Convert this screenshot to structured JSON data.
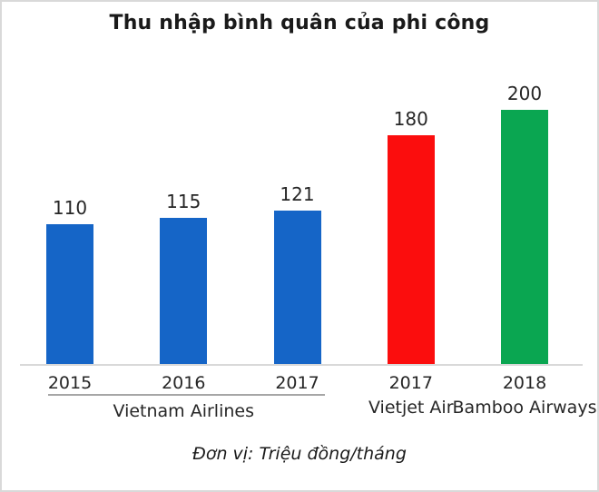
{
  "colors": {
    "blue": "#1565c7",
    "red": "#fb0d0d",
    "green": "#0aa651",
    "axis_line": "#d9d9d9",
    "group_underline": "#a6a6a6",
    "text": "#1a1a1a"
  },
  "chart_data": {
    "type": "bar",
    "title": "Thu nhập bình quân của phi công",
    "unit_label": "Đơn vị: Triệu đồng/tháng",
    "ylim": [
      0,
      200
    ],
    "grid": false,
    "legend": false,
    "value_labels_shown": true,
    "bars": [
      {
        "x_label": "2015",
        "group": "Vietnam Airlines",
        "value": 110,
        "color": "#1565c7"
      },
      {
        "x_label": "2016",
        "group": "Vietnam Airlines",
        "value": 115,
        "color": "#1565c7"
      },
      {
        "x_label": "2017",
        "group": "Vietnam Airlines",
        "value": 121,
        "color": "#1565c7"
      },
      {
        "x_label": "2017",
        "group": "Vietjet Air",
        "value": 180,
        "color": "#fb0d0d"
      },
      {
        "x_label": "2018",
        "group": "Bamboo Airways",
        "value": 200,
        "color": "#0aa651"
      }
    ],
    "groups": [
      {
        "label": "Vietnam Airlines",
        "bars": [
          0,
          1,
          2
        ],
        "underline": true
      },
      {
        "label": "Vietjet Air",
        "bars": [
          3
        ],
        "underline": false
      },
      {
        "label": "Bamboo Airways",
        "bars": [
          4
        ],
        "underline": false
      }
    ]
  }
}
